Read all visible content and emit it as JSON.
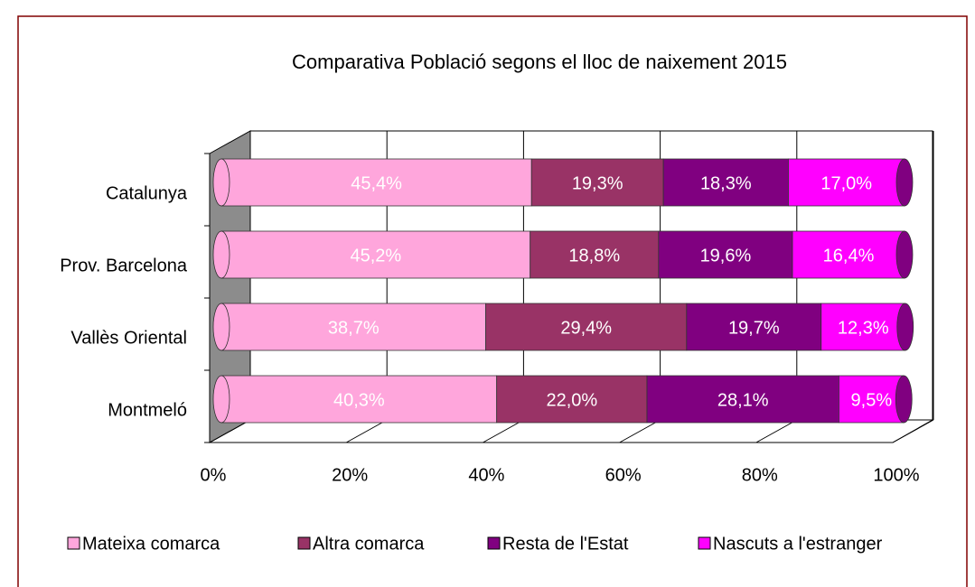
{
  "chart_data": {
    "type": "stacked_bar_horizontal",
    "title": "Comparativa Població segons el lloc de naixement 2015",
    "categories": [
      "Catalunya",
      "Prov. Barcelona",
      "Vallès Oriental",
      "Montmeló"
    ],
    "series": [
      {
        "name": "Mateixa comarca",
        "color": "#ffa6dc",
        "values": [
          45.4,
          45.2,
          38.7,
          40.3
        ],
        "value_labels": [
          "45,4%",
          "45,2%",
          "38,7%",
          "40,3%"
        ]
      },
      {
        "name": "Altra comarca",
        "color": "#993366",
        "values": [
          19.3,
          18.8,
          29.4,
          22.0
        ],
        "value_labels": [
          "19,3%",
          "18,8%",
          "29,4%",
          "22,0%"
        ]
      },
      {
        "name": "Resta de l'Estat",
        "color": "#800080",
        "values": [
          18.3,
          19.6,
          19.7,
          28.1
        ],
        "value_labels": [
          "18,3%",
          "19,6%",
          "19,7%",
          "28,1%"
        ]
      },
      {
        "name": "Nascuts a l'estranger",
        "color": "#ff00ff",
        "values": [
          17.0,
          16.4,
          12.3,
          9.5
        ],
        "value_labels": [
          "17,0%",
          "16,4%",
          "12,3%",
          "9,5%"
        ]
      }
    ],
    "xlim": [
      0,
      100
    ],
    "xticks": [
      {
        "value": 0,
        "label": "0%"
      },
      {
        "value": 20,
        "label": "20%"
      },
      {
        "value": 40,
        "label": "40%"
      },
      {
        "value": 60,
        "label": "60%"
      },
      {
        "value": 80,
        "label": "80%"
      },
      {
        "value": 100,
        "label": "100%"
      }
    ],
    "grid": true,
    "legend": "bottom"
  }
}
